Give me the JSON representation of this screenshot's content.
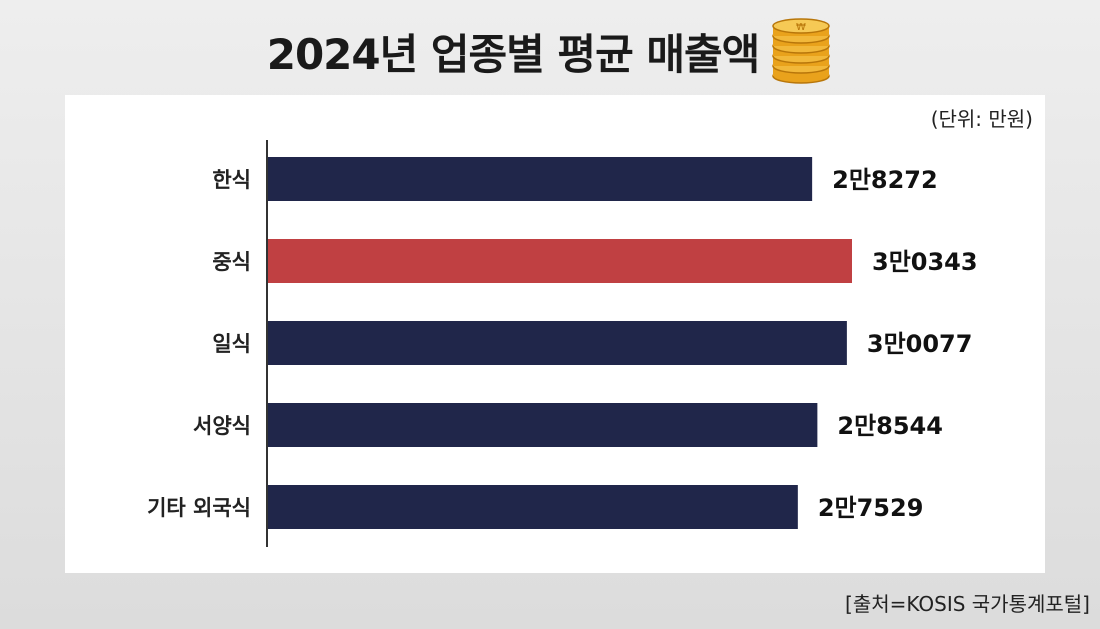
{
  "title": "2024년 업종별 평균 매출액",
  "title_icon": "coin-stack-icon",
  "unit_label": "(단위: 만원)",
  "source": "[출처=KOSIS 국가통계포털]",
  "chart_data": {
    "type": "bar",
    "orientation": "horizontal",
    "unit": "만원",
    "categories": [
      "한식",
      "중식",
      "일식",
      "서양식",
      "기타 외국식"
    ],
    "values": [
      28272,
      30343,
      30077,
      28544,
      27529
    ],
    "value_labels": [
      "2만8272",
      "3만0343",
      "3만0077",
      "2만8544",
      "2만7529"
    ],
    "highlight_index": 1,
    "colors": {
      "default": "#20264a",
      "highlight": "#c04042"
    },
    "xlim": [
      0,
      31000
    ],
    "grid": false,
    "legend": "none"
  }
}
